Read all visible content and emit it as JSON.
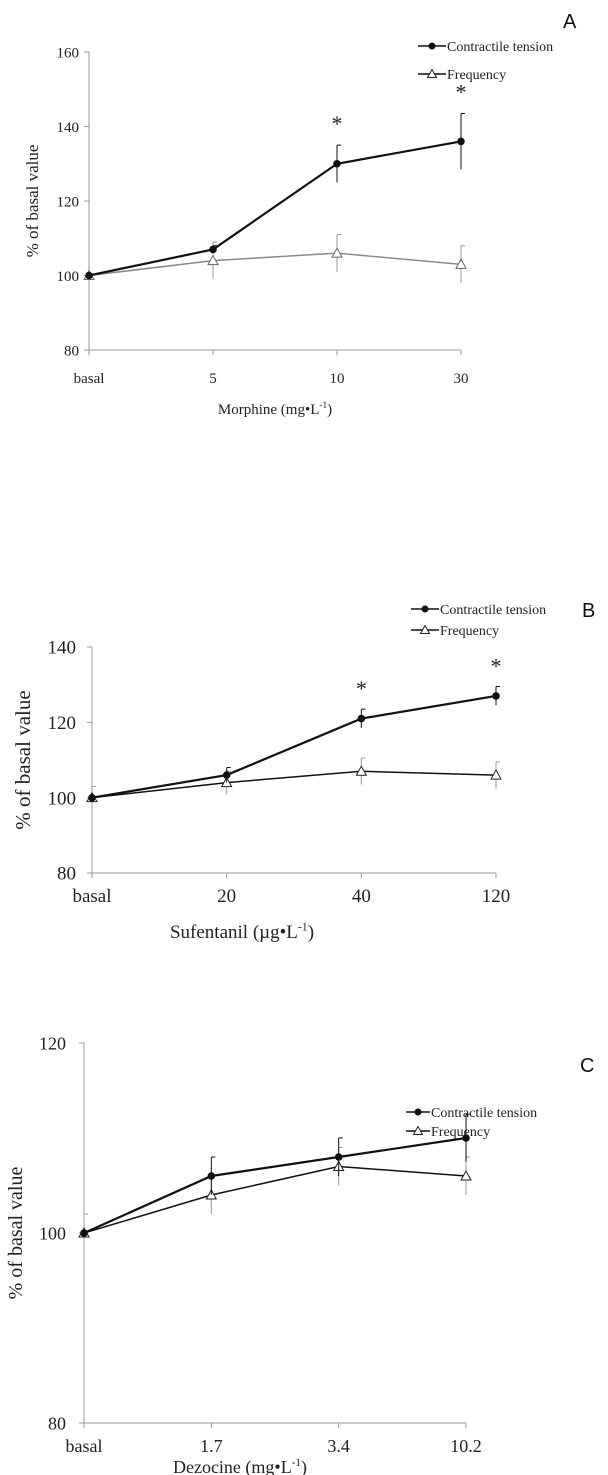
{
  "chart_data": [
    {
      "type": "line",
      "panel_label": "A",
      "title": "",
      "categories": [
        "basal",
        "5",
        "10",
        "30"
      ],
      "xlabel_main": "Morphine (mg•L",
      "xlabel_sup": "-1",
      "xlabel_end": ")",
      "ylabel": "% of basal value",
      "ylim": [
        80,
        160
      ],
      "yticks": [
        "80",
        "100",
        "120",
        "140",
        "160"
      ],
      "legend_position": "top-right",
      "series": [
        {
          "name": "Contractile tension",
          "marker": "filled-circle",
          "color": "#111111",
          "values": [
            100,
            107,
            130,
            136
          ],
          "errors": [
            0,
            1,
            5,
            7.5
          ]
        },
        {
          "name": "Frequency",
          "marker": "open-triangle",
          "color": "#8a8a8a",
          "values": [
            100,
            104,
            106,
            103
          ],
          "errors": [
            0,
            5,
            5,
            5
          ]
        }
      ],
      "annotations": [
        {
          "text": "*",
          "category": "10"
        },
        {
          "text": "*",
          "category": "30"
        }
      ]
    },
    {
      "type": "line",
      "panel_label": "B",
      "title": "",
      "categories": [
        "basal",
        "20",
        "40",
        "120"
      ],
      "xlabel_main": "Sufentanil (µg•L",
      "xlabel_sup": "-1",
      "xlabel_end": ")",
      "ylabel": "% of basal value",
      "ylim": [
        80,
        140
      ],
      "yticks": [
        "80",
        "100",
        "120",
        "140"
      ],
      "legend_position": "top-right",
      "series": [
        {
          "name": "Contractile tension",
          "marker": "filled-circle",
          "color": "#111111",
          "values": [
            100,
            106,
            121,
            127
          ],
          "errors": [
            0,
            2,
            2.5,
            2.5
          ]
        },
        {
          "name": "Frequency",
          "marker": "open-triangle",
          "color": "#111111",
          "values": [
            100,
            104,
            107,
            106
          ],
          "errors": [
            3,
            3,
            3.5,
            3.5
          ]
        }
      ],
      "annotations": [
        {
          "text": "*",
          "category": "40"
        },
        {
          "text": "*",
          "category": "120"
        }
      ]
    },
    {
      "type": "line",
      "panel_label": "C",
      "title": "",
      "categories": [
        "basal",
        "1.7",
        "3.4",
        "10.2"
      ],
      "xlabel_main": "Dezocine (mg•L",
      "xlabel_sup": "-1",
      "xlabel_end": ")",
      "ylabel": "% of basal value",
      "ylim": [
        80,
        120
      ],
      "yticks": [
        "80",
        "100",
        "120"
      ],
      "legend_position": "top-right",
      "series": [
        {
          "name": "Contractile tension",
          "marker": "filled-circle",
          "color": "#111111",
          "values": [
            100,
            106,
            108,
            110
          ],
          "errors": [
            0,
            2,
            2,
            2.5
          ]
        },
        {
          "name": "Frequency",
          "marker": "open-triangle",
          "color": "#111111",
          "values": [
            100,
            104,
            107,
            106
          ],
          "errors": [
            2,
            2,
            2,
            2
          ]
        }
      ],
      "annotations": []
    }
  ]
}
